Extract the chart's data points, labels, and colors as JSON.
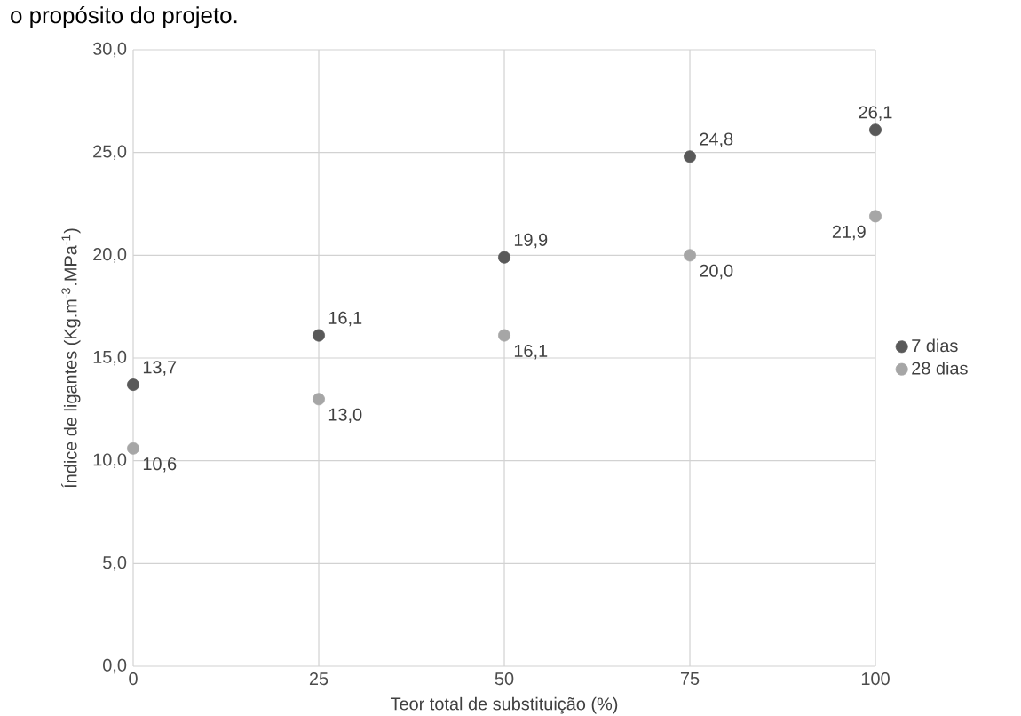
{
  "chart_data": {
    "type": "scatter",
    "annotations": [
      "o propósito do projeto."
    ],
    "xlabel": "Teor total de substituição (%)",
    "ylabel": "Índice de ligantes (Kg.m$^{-3}$.MPa$^{-1}$)",
    "x": [
      0,
      25,
      50,
      75,
      100
    ],
    "series": [
      {
        "name": "7 dias",
        "color": "#595959",
        "values": [
          13.7,
          16.1,
          19.9,
          24.8,
          26.1
        ],
        "value_labels": [
          "13,7",
          "16,1",
          "19,9",
          "24,8",
          "26,1"
        ]
      },
      {
        "name": "28 dias",
        "color": "#a6a6a6",
        "values": [
          10.6,
          13.0,
          16.1,
          20.0,
          21.9
        ],
        "value_labels": [
          "10,6",
          "13,0",
          "16,1",
          "20,0",
          "21,9"
        ]
      }
    ],
    "xlim": [
      0,
      100
    ],
    "xticks": [
      0,
      25,
      50,
      75,
      100
    ],
    "ylim": [
      0,
      30
    ],
    "yticks": [
      {
        "value": 0,
        "label": "0,0"
      },
      {
        "value": 5,
        "label": "5,0"
      },
      {
        "value": 10,
        "label": "10,0"
      },
      {
        "value": 15,
        "label": "15,0"
      },
      {
        "value": 20,
        "label": "20,0"
      },
      {
        "value": 25,
        "label": "25,0"
      },
      {
        "value": 30,
        "label": "30,0"
      }
    ],
    "grid": true,
    "legend": "right",
    "marker": "circle"
  }
}
